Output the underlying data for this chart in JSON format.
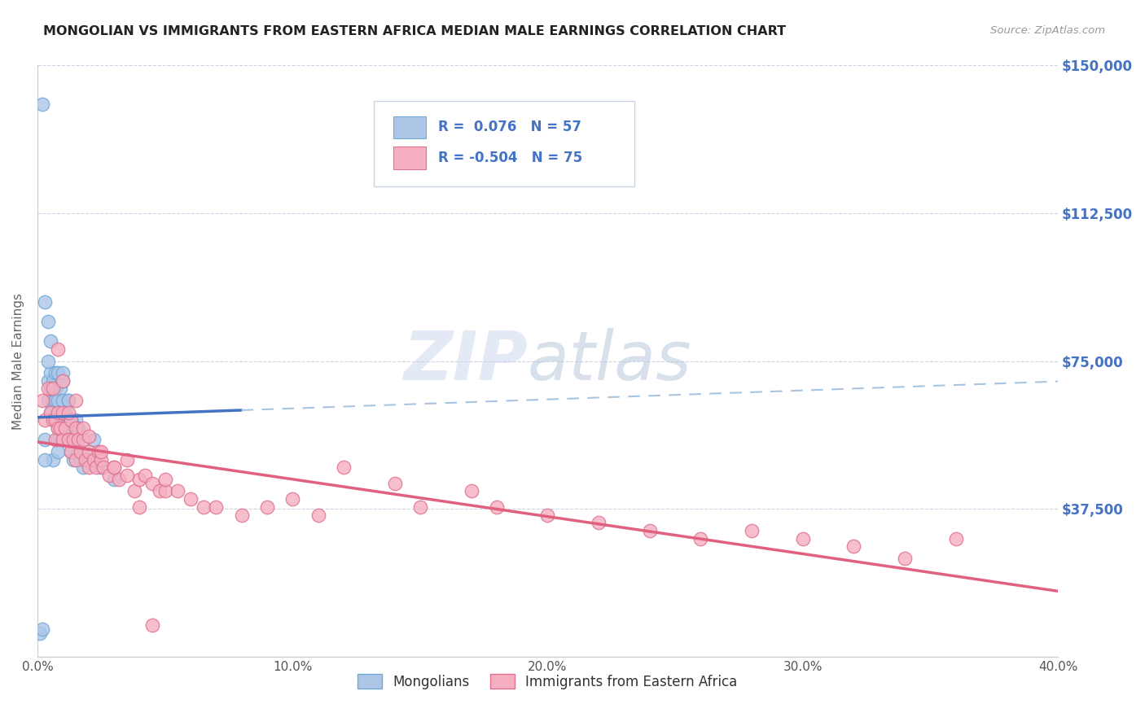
{
  "title": "MONGOLIAN VS IMMIGRANTS FROM EASTERN AFRICA MEDIAN MALE EARNINGS CORRELATION CHART",
  "source": "Source: ZipAtlas.com",
  "ylabel": "Median Male Earnings",
  "xlim": [
    0.0,
    0.4
  ],
  "ylim": [
    0,
    150000
  ],
  "xtick_vals": [
    0.0,
    0.05,
    0.1,
    0.15,
    0.2,
    0.25,
    0.3,
    0.35,
    0.4
  ],
  "xticklabels": [
    "0.0%",
    "",
    "10.0%",
    "",
    "20.0%",
    "",
    "30.0%",
    "",
    "40.0%"
  ],
  "ytick_vals": [
    0,
    37500,
    75000,
    112500,
    150000
  ],
  "right_yticklabels": [
    "",
    "$37,500",
    "$75,000",
    "$112,500",
    "$150,000"
  ],
  "right_ytick_color": "#4472c4",
  "mongolian_color": "#adc6e8",
  "mongolian_edge": "#6fa8d6",
  "eastern_africa_color": "#f5afc0",
  "eastern_africa_edge": "#e07090",
  "trend_blue_color": "#4472c4",
  "trend_pink_color": "#e06080",
  "trend_dashed_color": "#a8c4e0",
  "legend1": "Mongolians",
  "legend2": "Immigrants from Eastern Africa",
  "background_color": "#ffffff",
  "grid_color": "#ccd4e8",
  "mongolian_x": [
    0.001,
    0.002,
    0.003,
    0.003,
    0.004,
    0.004,
    0.004,
    0.005,
    0.005,
    0.005,
    0.005,
    0.006,
    0.006,
    0.007,
    0.007,
    0.007,
    0.007,
    0.008,
    0.008,
    0.008,
    0.008,
    0.009,
    0.009,
    0.009,
    0.01,
    0.01,
    0.01,
    0.011,
    0.011,
    0.012,
    0.012,
    0.012,
    0.013,
    0.013,
    0.014,
    0.014,
    0.015,
    0.015,
    0.016,
    0.017,
    0.018,
    0.02,
    0.022,
    0.025,
    0.03,
    0.002,
    0.008,
    0.01,
    0.012,
    0.006,
    0.004,
    0.013,
    0.016,
    0.01,
    0.008,
    0.005,
    0.003
  ],
  "mongolian_y": [
    6000,
    7000,
    90000,
    55000,
    85000,
    70000,
    65000,
    80000,
    72000,
    68000,
    62000,
    70000,
    65000,
    72000,
    68000,
    65000,
    60000,
    72000,
    65000,
    60000,
    58000,
    68000,
    62000,
    55000,
    70000,
    65000,
    60000,
    62000,
    58000,
    65000,
    60000,
    55000,
    58000,
    52000,
    55000,
    50000,
    60000,
    55000,
    52000,
    50000,
    48000,
    50000,
    55000,
    48000,
    45000,
    140000,
    55000,
    72000,
    65000,
    50000,
    75000,
    60000,
    58000,
    55000,
    52000,
    68000,
    50000
  ],
  "eastern_africa_x": [
    0.002,
    0.003,
    0.004,
    0.005,
    0.006,
    0.006,
    0.007,
    0.007,
    0.008,
    0.008,
    0.009,
    0.01,
    0.01,
    0.011,
    0.012,
    0.013,
    0.013,
    0.014,
    0.015,
    0.015,
    0.016,
    0.017,
    0.018,
    0.019,
    0.02,
    0.02,
    0.022,
    0.023,
    0.024,
    0.025,
    0.026,
    0.028,
    0.03,
    0.032,
    0.035,
    0.038,
    0.04,
    0.042,
    0.045,
    0.048,
    0.05,
    0.055,
    0.06,
    0.065,
    0.07,
    0.08,
    0.09,
    0.1,
    0.11,
    0.12,
    0.14,
    0.15,
    0.17,
    0.18,
    0.2,
    0.22,
    0.24,
    0.26,
    0.28,
    0.3,
    0.32,
    0.34,
    0.36,
    0.008,
    0.01,
    0.012,
    0.015,
    0.018,
    0.02,
    0.025,
    0.03,
    0.035,
    0.04,
    0.045,
    0.05
  ],
  "eastern_africa_y": [
    65000,
    60000,
    68000,
    62000,
    68000,
    60000,
    60000,
    55000,
    62000,
    58000,
    58000,
    62000,
    55000,
    58000,
    55000,
    52000,
    60000,
    55000,
    58000,
    50000,
    55000,
    52000,
    55000,
    50000,
    52000,
    48000,
    50000,
    48000,
    52000,
    50000,
    48000,
    46000,
    48000,
    45000,
    50000,
    42000,
    45000,
    46000,
    44000,
    42000,
    42000,
    42000,
    40000,
    38000,
    38000,
    36000,
    38000,
    40000,
    36000,
    48000,
    44000,
    38000,
    42000,
    38000,
    36000,
    34000,
    32000,
    30000,
    32000,
    30000,
    28000,
    25000,
    30000,
    78000,
    70000,
    62000,
    65000,
    58000,
    56000,
    52000,
    48000,
    46000,
    38000,
    8000,
    45000
  ]
}
